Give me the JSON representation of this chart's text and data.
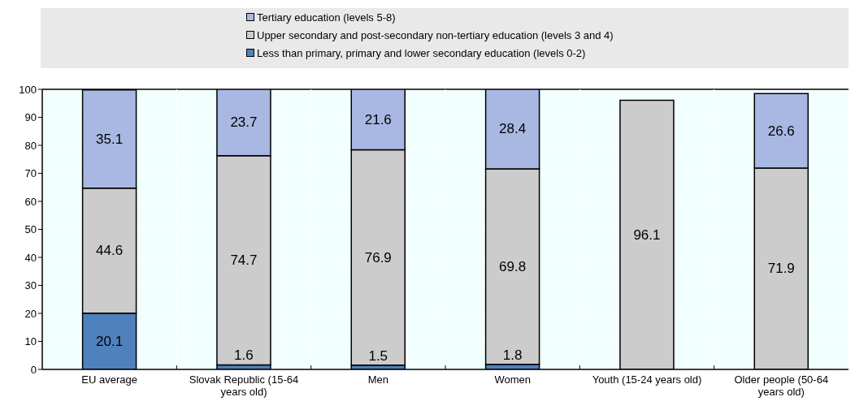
{
  "chart_data": {
    "type": "bar",
    "stacked": true,
    "categories": [
      "EU average",
      "Slovak Republic (15-64 years old)",
      "Men",
      "Women",
      "Youth (15-24 years old)",
      "Older people (50-64 years old)"
    ],
    "series": [
      {
        "name": "Less than primary, primary and lower secondary education (levels 0-2)",
        "color": "#4f81bd",
        "values": [
          20.1,
          1.6,
          1.5,
          1.8,
          null,
          null
        ]
      },
      {
        "name": "Upper secondary and post-secondary non-tertiary education (levels 3 and 4)",
        "color": "#cccccc",
        "values": [
          44.6,
          74.7,
          76.9,
          69.8,
          96.1,
          71.9
        ]
      },
      {
        "name": "Tertiary education (levels 5-8)",
        "color": "#a8b8e3",
        "values": [
          35.1,
          23.7,
          21.6,
          28.4,
          null,
          26.6
        ]
      }
    ],
    "ylim": [
      0,
      100
    ],
    "yticks": [
      0,
      10,
      20,
      30,
      40,
      50,
      60,
      70,
      80,
      90,
      100
    ],
    "grid": true,
    "legend": "top",
    "data_labels": true
  }
}
